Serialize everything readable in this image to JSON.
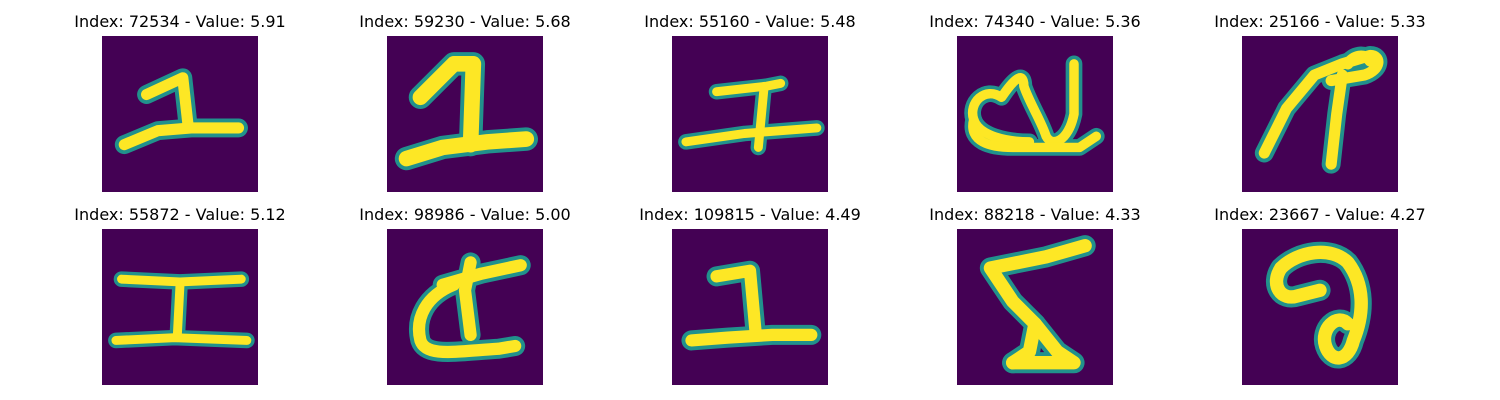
{
  "colors": {
    "background": "#440154",
    "stroke_edge": "#21918c",
    "stroke_mid": "#5ec962",
    "stroke_core": "#fde725"
  },
  "panels": [
    {
      "title": "Index: 72534 - Value: 5.91",
      "glyph": "digit-1-horizontal-base"
    },
    {
      "title": "Index: 59230 - Value: 5.68",
      "glyph": "digit-1-thick"
    },
    {
      "title": "Index: 55160 - Value: 5.48",
      "glyph": "crossed-stroke"
    },
    {
      "title": "Index: 74340 - Value: 5.36",
      "glyph": "loop-scribble"
    },
    {
      "title": "Index: 25166 - Value: 5.33",
      "glyph": "slanted-loop"
    },
    {
      "title": "Index: 55872 - Value: 5.12",
      "glyph": "i-beam"
    },
    {
      "title": "Index: 98986 - Value: 5.00",
      "glyph": "cursive-d"
    },
    {
      "title": "Index: 109815 - Value: 4.49",
      "glyph": "digit-1-base"
    },
    {
      "title": "Index: 88218 - Value: 4.33",
      "glyph": "zigzag-5"
    },
    {
      "title": "Index: 23667 - Value: 4.27",
      "glyph": "hooked-shape"
    }
  ]
}
